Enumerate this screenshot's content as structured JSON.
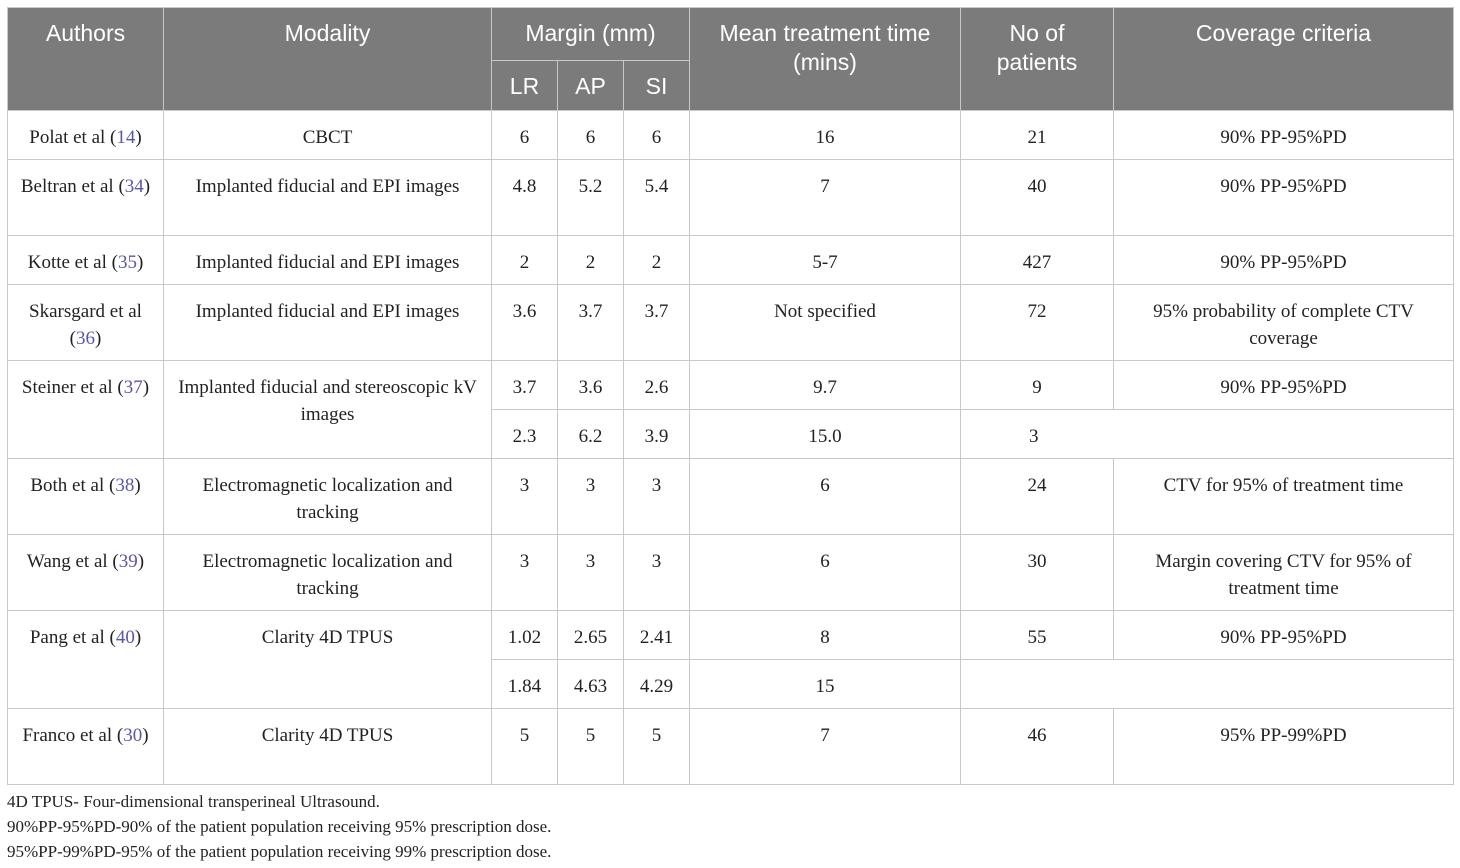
{
  "headers": {
    "authors": "Authors",
    "modality": "Modality",
    "margin": "Margin (mm)",
    "lr": "LR",
    "ap": "AP",
    "si": "SI",
    "mean_time": "Mean treatment time (mins)",
    "patients": "No of patients",
    "coverage": "Coverage criteria"
  },
  "rows": [
    {
      "author": "Polat et al (",
      "ref": "14",
      "close": ")",
      "modality": "CBCT",
      "lr": "6",
      "ap": "6",
      "si": "6",
      "time": "16",
      "patients": "21",
      "coverage": "90% PP-95%PD"
    },
    {
      "author": "Beltran et al (",
      "ref": "34",
      "close": ")",
      "modality": "Implanted fiducial and EPI images",
      "lr": "4.8",
      "ap": "5.2",
      "si": "5.4",
      "time": "7",
      "patients": "40",
      "coverage": "90% PP-95%PD"
    },
    {
      "author": "Kotte et al (",
      "ref": "35",
      "close": ")",
      "modality": "Implanted fiducial and EPI images",
      "lr": "2",
      "ap": "2",
      "si": "2",
      "time": "5-7",
      "patients": "427",
      "coverage": "90% PP-95%PD"
    },
    {
      "author": "Skarsgard et al (",
      "ref": "36",
      "close": ")",
      "modality": "Implanted fiducial and EPI images",
      "lr": "3.6",
      "ap": "3.7",
      "si": "3.7",
      "time": "Not specified",
      "patients": "72",
      "coverage": "95% probability of complete CTV coverage"
    },
    {
      "author": "Steiner et al (",
      "ref": "37",
      "close": ")",
      "modality": "Implanted fiducial and stereoscopic kV images",
      "lr": "3.7",
      "ap": "3.6",
      "si": "2.6",
      "time": "9.7",
      "patients": "9",
      "coverage": "90% PP-95%PD",
      "sub": {
        "lr": "2.3",
        "ap": "6.2",
        "si": "3.9",
        "time": "15.0",
        "patients": "3"
      }
    },
    {
      "author": "Both et al (",
      "ref": "38",
      "close": ")",
      "modality": "Electromagnetic localization and tracking",
      "lr": "3",
      "ap": "3",
      "si": "3",
      "time": "6",
      "patients": "24",
      "coverage": "CTV for 95% of treatment time"
    },
    {
      "author": "Wang et al (",
      "ref": "39",
      "close": ")",
      "modality": "Electromagnetic localization and tracking",
      "lr": "3",
      "ap": "3",
      "si": "3",
      "time": "6",
      "patients": "30",
      "coverage": "Margin covering CTV for 95% of treatment time"
    },
    {
      "author": "Pang et al (",
      "ref": "40",
      "close": ")",
      "modality": "Clarity 4D TPUS",
      "lr": "1.02",
      "ap": "2.65",
      "si": "2.41",
      "time": "8",
      "patients": "55",
      "coverage": "90% PP-95%PD",
      "sub": {
        "lr": "1.84",
        "ap": "4.63",
        "si": "4.29",
        "time": "15"
      }
    },
    {
      "author": "Franco et al (",
      "ref": "30",
      "close": ")",
      "modality": "Clarity 4D TPUS",
      "lr": "5",
      "ap": "5",
      "si": "5",
      "time": "7",
      "patients": "46",
      "coverage": "95% PP-99%PD"
    }
  ],
  "footnotes": [
    "4D TPUS- Four-dimensional transperineal Ultrasound.",
    "90%PP-95%PD-90% of the patient population receiving 95% prescription dose.",
    "95%PP-99%PD-95% of the patient population receiving 99% prescription dose."
  ]
}
